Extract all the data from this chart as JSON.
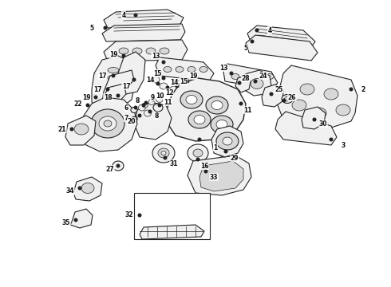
{
  "background_color": "#ffffff",
  "line_color": "#222222",
  "fig_width": 4.9,
  "fig_height": 3.6,
  "dpi": 100,
  "label_fs": 5.5,
  "lw_main": 0.8,
  "lw_thin": 0.5,
  "fc_main": "#f0f0f0",
  "fc_dark": "#d8d8d8",
  "fc_white": "#ffffff",
  "ec_main": "#222222"
}
